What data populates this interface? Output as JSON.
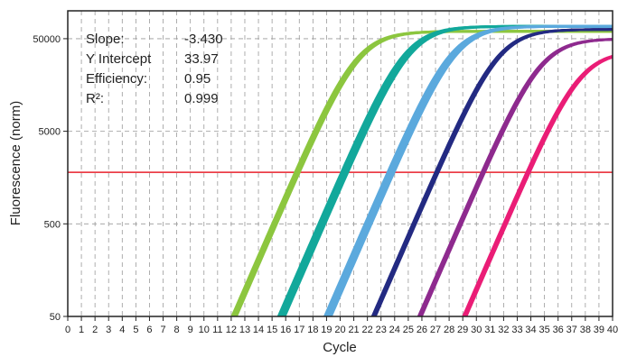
{
  "chart_data": {
    "type": "line",
    "xlabel": "Cycle",
    "ylabel": "Fluorescence (norm)",
    "x_range": [
      0,
      40
    ],
    "y_range": [
      50,
      100000
    ],
    "y_scale": "log",
    "x_ticks": [
      0,
      1,
      2,
      3,
      4,
      5,
      6,
      7,
      8,
      9,
      10,
      11,
      12,
      13,
      14,
      15,
      16,
      17,
      18,
      19,
      20,
      21,
      22,
      23,
      24,
      25,
      26,
      27,
      28,
      29,
      30,
      31,
      32,
      33,
      34,
      35,
      36,
      37,
      38,
      39,
      40
    ],
    "y_ticks": [
      {
        "value": 50,
        "label": "50"
      },
      {
        "value": 500,
        "label": "500"
      },
      {
        "value": 5000,
        "label": "5000"
      },
      {
        "value": 50000,
        "label": "50000"
      }
    ],
    "grid": true,
    "threshold": {
      "value": 1800,
      "color": "#e8212b"
    },
    "stats": [
      {
        "label": "Slope:",
        "value": "-3.430"
      },
      {
        "label": "Y Intercept",
        "value": "33.97"
      },
      {
        "label": "Efficiency:",
        "value": "0.95"
      },
      {
        "label": "R²:",
        "value": "0.999"
      }
    ],
    "series": [
      {
        "color": "#8cc63f",
        "plateau": 60000,
        "ct_values": [
          16.7,
          16.8,
          16.9,
          17.0
        ]
      },
      {
        "color": "#12a89b",
        "plateau": 68000,
        "ct_values": [
          20.1,
          20.25,
          20.4,
          20.55
        ]
      },
      {
        "color": "#5ba9dd",
        "plateau": 68000,
        "ct_values": [
          23.5,
          23.65,
          23.8,
          23.95
        ]
      },
      {
        "color": "#232a82",
        "plateau": 63000,
        "ct_values": [
          27.0,
          27.1,
          27.2
        ]
      },
      {
        "color": "#8e2a8e",
        "plateau": 50000,
        "ct_values": [
          30.4,
          30.5,
          30.6
        ]
      },
      {
        "color": "#ea1d76",
        "plateau": 37000,
        "ct_values": [
          33.7,
          33.8,
          33.9
        ]
      }
    ]
  }
}
